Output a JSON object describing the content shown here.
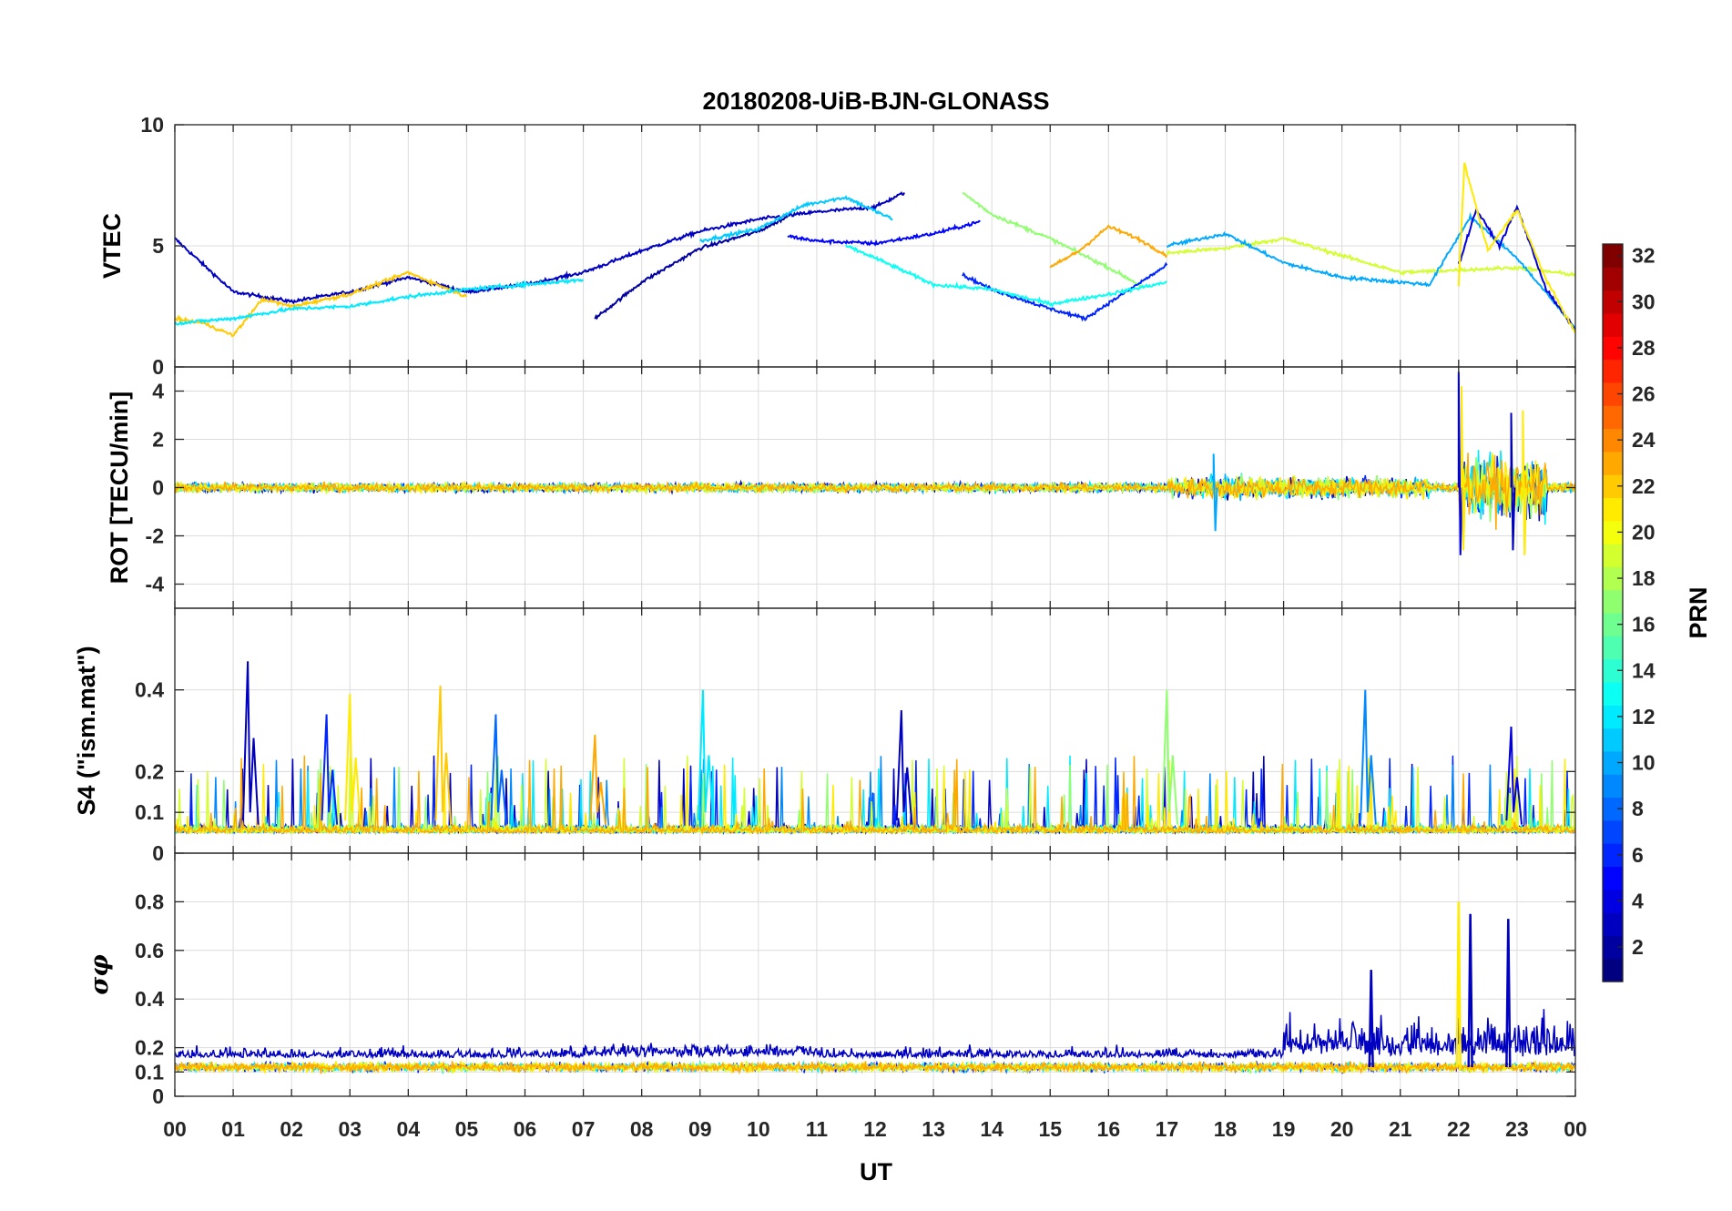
{
  "chart_data": {
    "title": "20180208-UiB-BJN-GLONASS",
    "type": "line",
    "xlabel": "UT",
    "x_tick_labels": [
      "00",
      "01",
      "02",
      "03",
      "04",
      "05",
      "06",
      "07",
      "08",
      "09",
      "10",
      "11",
      "12",
      "13",
      "14",
      "15",
      "16",
      "17",
      "18",
      "19",
      "20",
      "21",
      "22",
      "23",
      "00"
    ],
    "xlim": [
      0,
      24
    ],
    "grid": true,
    "panels": [
      {
        "id": "vtec",
        "ylabel": "VTEC",
        "ylim": [
          0,
          10
        ],
        "yticks": [
          0,
          5,
          10
        ],
        "series": [
          {
            "prn": 3,
            "x": [
              0,
              1,
              2,
              3,
              4,
              5,
              6,
              7,
              8,
              9,
              10,
              11,
              12,
              12.5
            ],
            "y": [
              5.3,
              3.1,
              2.7,
              3.1,
              3.7,
              3.1,
              3.4,
              3.9,
              4.8,
              5.6,
              6.1,
              6.4,
              6.6,
              7.2
            ]
          },
          {
            "prn": 2,
            "x": [
              7.2,
              8,
              9,
              10,
              10.5
            ],
            "y": [
              2.0,
              3.5,
              4.9,
              5.6,
              6.2
            ]
          },
          {
            "prn": 11,
            "x": [
              9,
              10,
              10.8,
              11.5,
              12.3
            ],
            "y": [
              5.2,
              5.7,
              6.7,
              7.0,
              6.1
            ]
          },
          {
            "prn": 5,
            "x": [
              10.5,
              11,
              12,
              13,
              13.8
            ],
            "y": [
              5.4,
              5.2,
              5.1,
              5.5,
              6.0
            ]
          },
          {
            "prn": 17,
            "x": [
              13.5,
              14,
              15,
              16,
              16.6
            ],
            "y": [
              7.2,
              6.3,
              5.3,
              4.1,
              3.3
            ]
          },
          {
            "prn": 23,
            "x": [
              15,
              15.5,
              16,
              16.5,
              17
            ],
            "y": [
              4.1,
              4.8,
              5.8,
              5.3,
              4.6
            ]
          },
          {
            "prn": 6,
            "x": [
              13.5,
              14,
              15,
              15.6,
              16.3,
              17
            ],
            "y": [
              3.8,
              3.2,
              2.4,
              2.0,
              3.1,
              4.2
            ]
          },
          {
            "prn": 13,
            "x": [
              11.5,
              12,
              13,
              14,
              15,
              16,
              17
            ],
            "y": [
              5.0,
              4.5,
              3.4,
              3.2,
              2.6,
              3.0,
              3.5
            ]
          },
          {
            "prn": 19,
            "x": [
              17,
              18,
              19,
              20,
              21,
              22,
              23,
              24
            ],
            "y": [
              4.7,
              4.9,
              5.3,
              4.6,
              3.9,
              4.0,
              4.1,
              3.8
            ]
          },
          {
            "prn": 10,
            "x": [
              17,
              18,
              19,
              20,
              21.5,
              22.2,
              23,
              24
            ],
            "y": [
              5.0,
              5.5,
              4.3,
              3.7,
              3.4,
              6.2,
              4.5,
              1.6
            ]
          },
          {
            "prn": 4,
            "x": [
              22,
              22.3,
              22.7,
              23,
              23.5,
              24
            ],
            "y": [
              4.2,
              6.5,
              5.0,
              6.6,
              3.2,
              1.5
            ]
          },
          {
            "prn": 21,
            "x": [
              22,
              22.1,
              22.5,
              23,
              23.5,
              24
            ],
            "y": [
              3.4,
              8.4,
              4.8,
              6.5,
              3.6,
              1.4
            ]
          },
          {
            "prn": 22,
            "x": [
              0,
              0.5,
              1,
              1.5,
              2,
              3,
              4,
              4.5,
              5
            ],
            "y": [
              2.0,
              1.8,
              1.3,
              2.8,
              2.5,
              3.0,
              3.9,
              3.4,
              2.9
            ]
          },
          {
            "prn": 12,
            "x": [
              0,
              1,
              2,
              3,
              4,
              5,
              6,
              7
            ],
            "y": [
              1.8,
              2.0,
              2.4,
              2.5,
              2.9,
              3.2,
              3.4,
              3.6
            ]
          }
        ]
      },
      {
        "id": "rot",
        "ylabel": "ROT [TECU/min]",
        "ylim": [
          -5,
          5
        ],
        "yticks": [
          -4,
          -2,
          0,
          2,
          4
        ],
        "spikes": [
          {
            "x": 17.8,
            "lo": -1.8,
            "hi": 1.4,
            "prn": 10
          },
          {
            "x": 22.0,
            "lo": -2.8,
            "hi": 4.8,
            "prn": 4
          },
          {
            "x": 22.05,
            "lo": -2.6,
            "hi": 4.2,
            "prn": 21
          },
          {
            "x": 22.9,
            "lo": -2.6,
            "hi": 3.1,
            "prn": 3
          },
          {
            "x": 23.1,
            "lo": -2.8,
            "hi": 3.2,
            "prn": 21
          }
        ]
      },
      {
        "id": "s4",
        "ylabel": "S4 (\"ism.mat\")",
        "ylim": [
          0,
          0.6
        ],
        "yticks": [
          0,
          0.1,
          0.2,
          0.4
        ],
        "peaks": [
          {
            "x": 1.25,
            "v": 0.47,
            "prn": 3
          },
          {
            "x": 2.6,
            "v": 0.34,
            "prn": 6
          },
          {
            "x": 3.0,
            "v": 0.39,
            "prn": 21
          },
          {
            "x": 4.55,
            "v": 0.41,
            "prn": 22
          },
          {
            "x": 5.5,
            "v": 0.34,
            "prn": 8
          },
          {
            "x": 7.2,
            "v": 0.29,
            "prn": 23
          },
          {
            "x": 9.05,
            "v": 0.4,
            "prn": 12
          },
          {
            "x": 12.45,
            "v": 0.35,
            "prn": 3
          },
          {
            "x": 17.0,
            "v": 0.4,
            "prn": 17
          },
          {
            "x": 20.4,
            "v": 0.4,
            "prn": 9
          },
          {
            "x": 22.9,
            "v": 0.31,
            "prn": 4
          }
        ]
      },
      {
        "id": "sigma",
        "ylabel": "σφ",
        "ylim": [
          0,
          1
        ],
        "yticks": [
          0,
          0.1,
          0.2,
          0.4,
          0.6,
          0.8
        ],
        "peaks": [
          {
            "x": 22.0,
            "v": 0.8,
            "prn": 21
          },
          {
            "x": 22.2,
            "v": 0.75,
            "prn": 3
          },
          {
            "x": 22.85,
            "v": 0.73,
            "prn": 3
          },
          {
            "x": 20.5,
            "v": 0.52,
            "prn": 3
          }
        ]
      }
    ],
    "colorbar": {
      "label": "PRN",
      "range": [
        1,
        32
      ],
      "ticks": [
        2,
        4,
        6,
        8,
        10,
        12,
        14,
        16,
        18,
        20,
        22,
        24,
        26,
        28,
        30,
        32
      ],
      "colormap": "jet"
    }
  }
}
